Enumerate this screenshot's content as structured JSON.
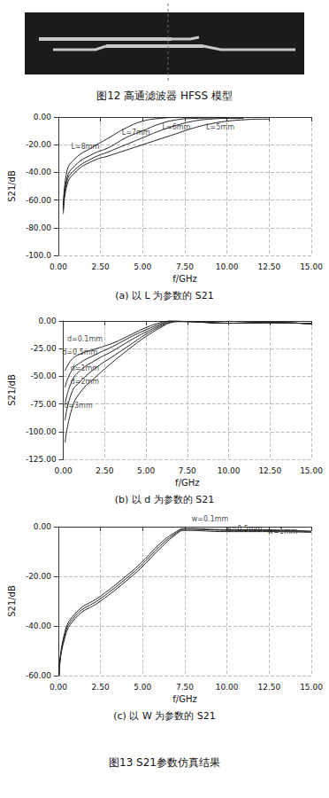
{
  "captions": [
    "图12 高通滤波器 HFSS 模型",
    "图13 S21参数仿真结果"
  ],
  "chart_data": [
    {
      "type": "line",
      "title": "(a) 以 L 为参数的 S21",
      "x_label": "f/GHz",
      "y_label": "S21/dB",
      "xlim": [
        0,
        15
      ],
      "ylim": [
        -100,
        0
      ],
      "grid": true,
      "xticks": [
        {
          "value": 0,
          "label": "0.00"
        },
        {
          "value": 2.5,
          "label": "2.50"
        },
        {
          "value": 5,
          "label": "5.00"
        },
        {
          "value": 7.5,
          "label": "7.50"
        },
        {
          "value": 10,
          "label": "10.00"
        },
        {
          "value": 12.5,
          "label": "12.50"
        },
        {
          "value": 15,
          "label": "15.00"
        }
      ],
      "yticks": [
        {
          "value": 0,
          "label": "0.00"
        },
        {
          "value": -20,
          "label": "-20.00"
        },
        {
          "value": -40,
          "label": "-40.00"
        },
        {
          "value": -60,
          "label": "-60.00"
        },
        {
          "value": -80,
          "label": "-80.00"
        },
        {
          "value": -100,
          "label": "-100.0"
        }
      ],
      "series": [
        {
          "name": "L=8mm",
          "color": "#222222",
          "x": [
            0.3,
            0.5,
            1,
            2,
            3,
            4,
            5,
            6,
            7,
            8,
            10
          ],
          "values": [
            -65,
            -40,
            -30,
            -22,
            -15,
            -8,
            -3,
            -1,
            -0.3,
            -0.2,
            -0.2
          ]
        },
        {
          "name": "L=7mm",
          "color": "#222222",
          "x": [
            0.3,
            0.5,
            1,
            2,
            3,
            4,
            5,
            6,
            7,
            8,
            10
          ],
          "values": [
            -66,
            -45,
            -35,
            -27,
            -22,
            -15,
            -10,
            -5,
            -2,
            -1,
            -0.5
          ]
        },
        {
          "name": "L=6mm",
          "color": "#222222",
          "x": [
            0.3,
            0.5,
            1,
            2,
            3,
            4,
            5,
            6,
            7,
            8,
            9,
            10,
            11
          ],
          "values": [
            -68,
            -47,
            -38,
            -30,
            -25,
            -20,
            -15,
            -10,
            -6,
            -3,
            -1.5,
            -1,
            -1
          ]
        },
        {
          "name": "L=5mm",
          "color": "#222222",
          "x": [
            0.3,
            0.5,
            1,
            2,
            3,
            4,
            5,
            6,
            7,
            8,
            9,
            10,
            11,
            12,
            12.5
          ],
          "values": [
            -70,
            -50,
            -40,
            -32,
            -28,
            -24,
            -20,
            -16,
            -12,
            -8,
            -5,
            -3,
            -2,
            -1.5,
            -1.5
          ]
        }
      ],
      "annotations": [
        {
          "text": "L=8mm",
          "x": 1.6,
          "y": -27
        },
        {
          "text": "L=7mm",
          "x": 4.6,
          "y": -17
        },
        {
          "text": "L=6mm",
          "x": 7.0,
          "y": -13
        },
        {
          "text": "L=5mm",
          "x": 9.6,
          "y": -13
        }
      ]
    },
    {
      "type": "line",
      "title": "(b) 以 d 为参数的 S21",
      "x_label": "f/GHz",
      "y_label": "S21/dB",
      "xlim": [
        0,
        15
      ],
      "ylim": [
        -125,
        0
      ],
      "grid": true,
      "xticks": [
        {
          "value": 0,
          "label": "0.00"
        },
        {
          "value": 2.5,
          "label": "2.50"
        },
        {
          "value": 5,
          "label": "5.00"
        },
        {
          "value": 7.5,
          "label": "7.50"
        },
        {
          "value": 10,
          "label": "10.00"
        },
        {
          "value": 12.5,
          "label": "12.50"
        },
        {
          "value": 15,
          "label": "15.00"
        }
      ],
      "yticks": [
        {
          "value": 0,
          "label": "0.00"
        },
        {
          "value": -25,
          "label": "-25.00"
        },
        {
          "value": -50,
          "label": "-50.00"
        },
        {
          "value": -75,
          "label": "-75.00"
        },
        {
          "value": -100,
          "label": "-100.00"
        },
        {
          "value": -125,
          "label": "-125.00"
        }
      ],
      "series": [
        {
          "name": "d=0.1mm",
          "color": "#222222",
          "x": [
            0.1,
            0.5,
            1,
            2,
            3,
            4,
            5,
            6,
            6.5,
            7.5,
            10,
            12.5,
            15
          ],
          "values": [
            -45,
            -35,
            -30,
            -25,
            -20,
            -13,
            -6,
            -1,
            0,
            -0.5,
            -2,
            -1.5,
            -2.5
          ]
        },
        {
          "name": "d=0.5mm",
          "color": "#222222",
          "x": [
            0.1,
            0.5,
            1,
            2,
            3,
            4,
            5,
            6,
            6.5,
            7.5,
            10,
            12.5,
            15
          ],
          "values": [
            -60,
            -45,
            -38,
            -30,
            -23,
            -15,
            -8,
            -2,
            0,
            -0.5,
            -2,
            -1.5,
            -2.5
          ]
        },
        {
          "name": "d=1mm",
          "color": "#222222",
          "x": [
            0.1,
            0.5,
            1,
            2,
            3,
            4,
            5,
            6,
            6.5,
            7.5,
            10,
            12.5,
            15
          ],
          "values": [
            -75,
            -55,
            -45,
            -35,
            -27,
            -18,
            -10,
            -3,
            -0.5,
            -0.5,
            -2,
            -1.5,
            -2.5
          ]
        },
        {
          "name": "d=2mm",
          "color": "#222222",
          "x": [
            0.1,
            0.5,
            1,
            2,
            3,
            4,
            5,
            6,
            6.5,
            7,
            7.5,
            10,
            12.5,
            15
          ],
          "values": [
            -90,
            -65,
            -55,
            -42,
            -32,
            -22,
            -12,
            -4,
            -1,
            -0.5,
            -0.5,
            -2,
            -1.5,
            -2.5
          ]
        },
        {
          "name": "d=3mm",
          "color": "#222222",
          "x": [
            0.1,
            0.5,
            1,
            2,
            3,
            4,
            5,
            6,
            6.5,
            7,
            7.5,
            10,
            12.5,
            15
          ],
          "values": [
            -110,
            -80,
            -65,
            -50,
            -37,
            -25,
            -14,
            -5,
            -1.5,
            -0.5,
            -0.5,
            -2,
            -1.5,
            -2.5
          ]
        }
      ],
      "annotations": [
        {
          "text": "d=0.1mm",
          "x": 1.3,
          "y": -24
        },
        {
          "text": "d=0.5mm",
          "x": 1.0,
          "y": -36
        },
        {
          "text": "d=1mm",
          "x": 1.3,
          "y": -50
        },
        {
          "text": "d=2mm",
          "x": 1.3,
          "y": -62
        },
        {
          "text": "d=3mm",
          "x": 0.9,
          "y": -84
        }
      ]
    },
    {
      "type": "line",
      "title": "(c) 以 W 为参数的 S21",
      "x_label": "f/GHz",
      "y_label": "S21/dB",
      "xlim": [
        0,
        15
      ],
      "ylim": [
        -60,
        0
      ],
      "grid": true,
      "xticks": [
        {
          "value": 0,
          "label": "0.00"
        },
        {
          "value": 2.5,
          "label": "2.50"
        },
        {
          "value": 5,
          "label": "5.00"
        },
        {
          "value": 7.5,
          "label": "7.50"
        },
        {
          "value": 10,
          "label": "10.00"
        },
        {
          "value": 12.5,
          "label": "12.50"
        },
        {
          "value": 15,
          "label": "15.00"
        }
      ],
      "yticks": [
        {
          "value": 0,
          "label": "0.00"
        },
        {
          "value": -20,
          "label": "-20.00"
        },
        {
          "value": -40,
          "label": "-40.00"
        },
        {
          "value": -60,
          "label": "-60.00"
        }
      ],
      "series": [
        {
          "name": "w=0.1mm",
          "color": "#222222",
          "x": [
            0.05,
            0.3,
            1,
            2.5,
            4,
            5,
            6,
            7,
            7.5,
            10,
            12.5,
            15
          ],
          "values": [
            -60,
            -45,
            -35,
            -28,
            -20,
            -14,
            -7,
            -2,
            -0.8,
            -1.2,
            -1.3,
            -1.8
          ]
        },
        {
          "name": "w=0.5mm",
          "color": "#222222",
          "x": [
            0.05,
            0.3,
            1,
            2.5,
            4,
            5,
            6,
            7,
            7.5,
            10,
            12.5,
            15
          ],
          "values": [
            -60,
            -46,
            -36,
            -29,
            -21,
            -15,
            -8,
            -2.5,
            -1,
            -1.5,
            -1.6,
            -2
          ]
        },
        {
          "name": "w=1mm",
          "color": "#222222",
          "x": [
            0.05,
            0.3,
            1,
            2.5,
            4,
            5,
            6,
            7,
            7.5,
            10,
            12.5,
            15
          ],
          "values": [
            -60,
            -47,
            -37,
            -30,
            -22,
            -16,
            -9,
            -3,
            -1.5,
            -2,
            -2,
            -2.3
          ]
        }
      ],
      "annotations": [
        {
          "text": "w=0.1mm",
          "x": 9.0,
          "y": 0
        },
        {
          "text": "w=0.5mm",
          "x": 11.0,
          "y": -4
        },
        {
          "text": "w=1mm",
          "x": 13.3,
          "y": -5
        }
      ]
    }
  ]
}
